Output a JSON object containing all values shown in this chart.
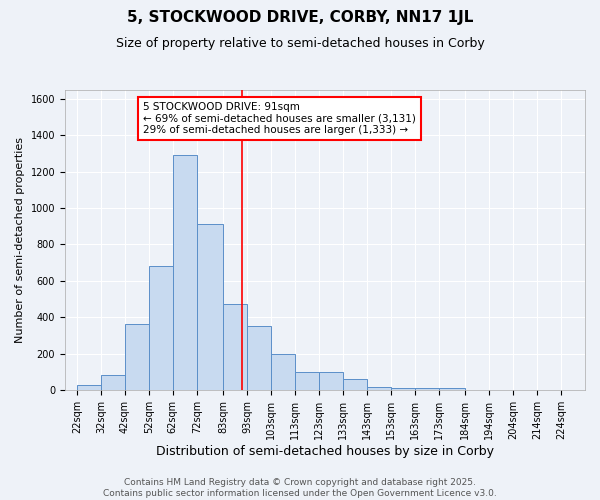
{
  "title": "5, STOCKWOOD DRIVE, CORBY, NN17 1JL",
  "subtitle": "Size of property relative to semi-detached houses in Corby",
  "xlabel": "Distribution of semi-detached houses by size in Corby",
  "ylabel": "Number of semi-detached properties",
  "bin_labels": [
    "22sqm",
    "32sqm",
    "42sqm",
    "52sqm",
    "62sqm",
    "72sqm",
    "83sqm",
    "93sqm",
    "103sqm",
    "113sqm",
    "123sqm",
    "133sqm",
    "143sqm",
    "153sqm",
    "163sqm",
    "173sqm",
    "184sqm",
    "194sqm",
    "204sqm",
    "214sqm",
    "224sqm"
  ],
  "bar_heights": [
    25,
    80,
    360,
    680,
    1290,
    910,
    470,
    350,
    195,
    100,
    100,
    60,
    15,
    10,
    10,
    10,
    0,
    0,
    0,
    0,
    0
  ],
  "bar_color": "#c8daf0",
  "bar_edgecolor": "#5b8fc9",
  "vline_x": 91,
  "vline_color": "red",
  "annotation_text": "5 STOCKWOOD DRIVE: 91sqm\n← 69% of semi-detached houses are smaller (3,131)\n29% of semi-detached houses are larger (1,333) →",
  "annotation_boxcolor": "white",
  "annotation_edgecolor": "red",
  "ylim": [
    0,
    1650
  ],
  "yticks": [
    0,
    200,
    400,
    600,
    800,
    1000,
    1200,
    1400,
    1600
  ],
  "bg_color": "#eef2f8",
  "grid_color": "white",
  "footer_text": "Contains HM Land Registry data © Crown copyright and database right 2025.\nContains public sector information licensed under the Open Government Licence v3.0.",
  "title_fontsize": 11,
  "subtitle_fontsize": 9,
  "xlabel_fontsize": 9,
  "ylabel_fontsize": 8,
  "tick_fontsize": 7,
  "annotation_fontsize": 7.5,
  "footer_fontsize": 6.5
}
